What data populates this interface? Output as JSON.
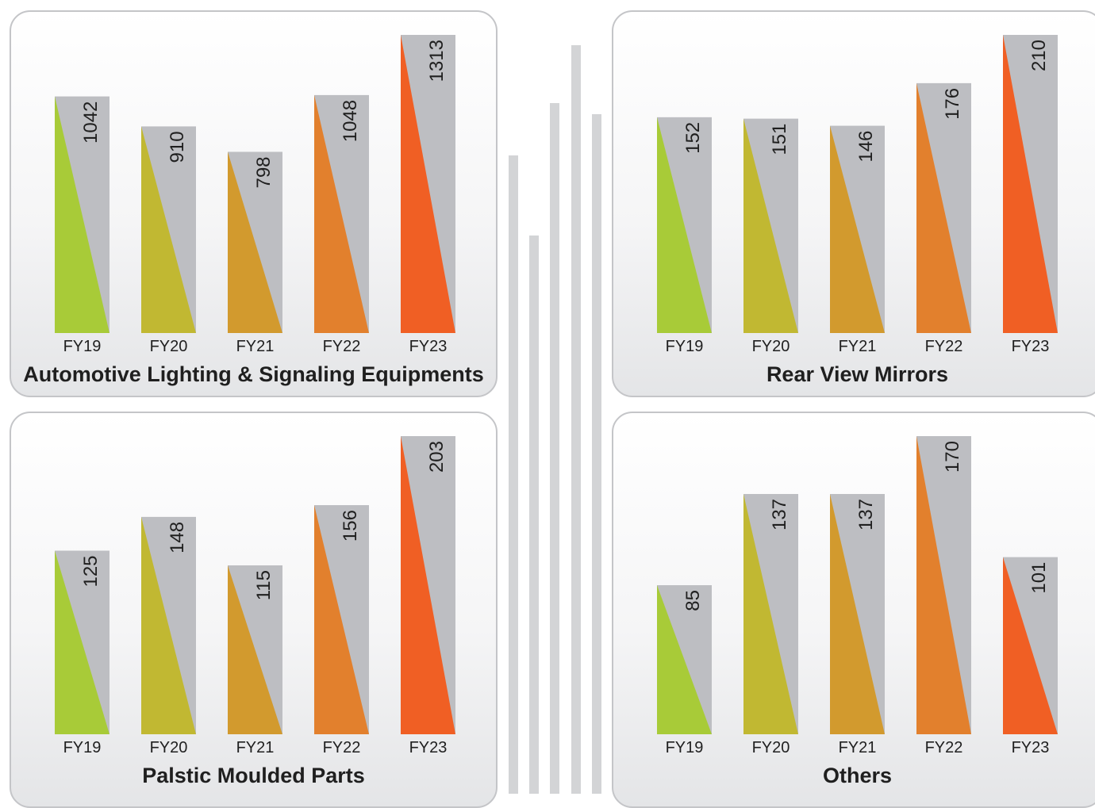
{
  "colors": {
    "bar_back": "#bdbec2",
    "FY19": "#a8cb38",
    "FY20": "#c1b832",
    "FY21": "#d29a2e",
    "FY22": "#e2802d",
    "FY23": "#f05f24"
  },
  "chart_data": [
    {
      "type": "bar",
      "title": "Automotive Lighting & Signaling Equipments",
      "categories": [
        "FY19",
        "FY20",
        "FY21",
        "FY22",
        "FY23"
      ],
      "values": [
        1042,
        910,
        798,
        1048,
        1313
      ],
      "ylim": [
        0,
        1313
      ],
      "grid": false
    },
    {
      "type": "bar",
      "title": "Rear View Mirrors",
      "categories": [
        "FY19",
        "FY20",
        "FY21",
        "FY22",
        "FY23"
      ],
      "values": [
        152,
        151,
        146,
        176,
        210
      ],
      "ylim": [
        0,
        210
      ],
      "grid": false
    },
    {
      "type": "bar",
      "title": "Palstic Moulded Parts",
      "categories": [
        "FY19",
        "FY20",
        "FY21",
        "FY22",
        "FY23"
      ],
      "values": [
        125,
        148,
        115,
        156,
        203
      ],
      "ylim": [
        0,
        203
      ],
      "grid": false
    },
    {
      "type": "bar",
      "title": "Others",
      "categories": [
        "FY19",
        "FY20",
        "FY21",
        "FY22",
        "FY23"
      ],
      "values": [
        85,
        137,
        137,
        170,
        101
      ],
      "ylim": [
        0,
        170
      ],
      "grid": false
    }
  ]
}
